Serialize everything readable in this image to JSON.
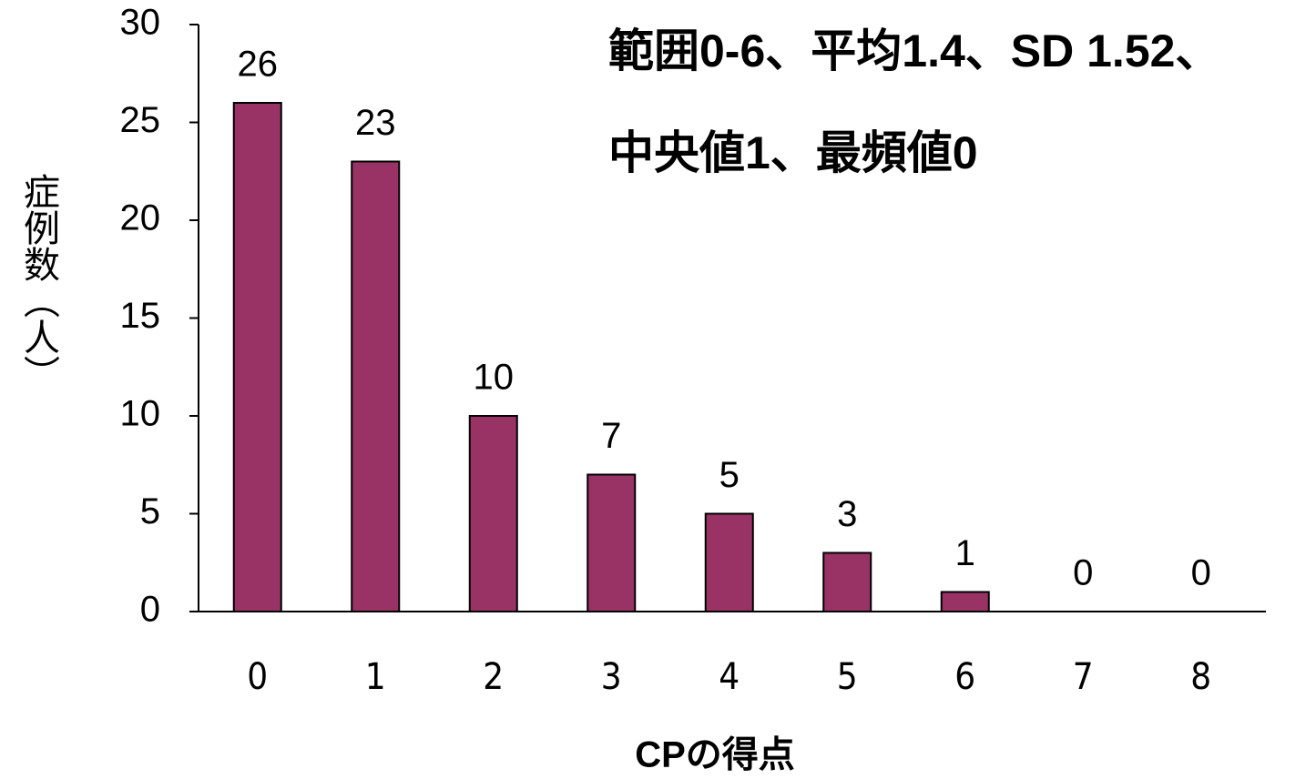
{
  "chart_data": {
    "type": "bar",
    "categories": [
      "0",
      "1",
      "2",
      "3",
      "4",
      "5",
      "6",
      "7",
      "8"
    ],
    "values": [
      26,
      23,
      10,
      7,
      5,
      3,
      1,
      0,
      0
    ],
    "color": "#993366",
    "ylim": [
      0,
      30
    ],
    "yticks": [
      0,
      5,
      10,
      15,
      20,
      25,
      30
    ],
    "x_label": "CPの得点",
    "y_label": "症例数（人）",
    "annotations": [
      "範囲0-6、平均1.4、SD 1.52、",
      "中央値1、最頻値0"
    ],
    "grid": false
  }
}
